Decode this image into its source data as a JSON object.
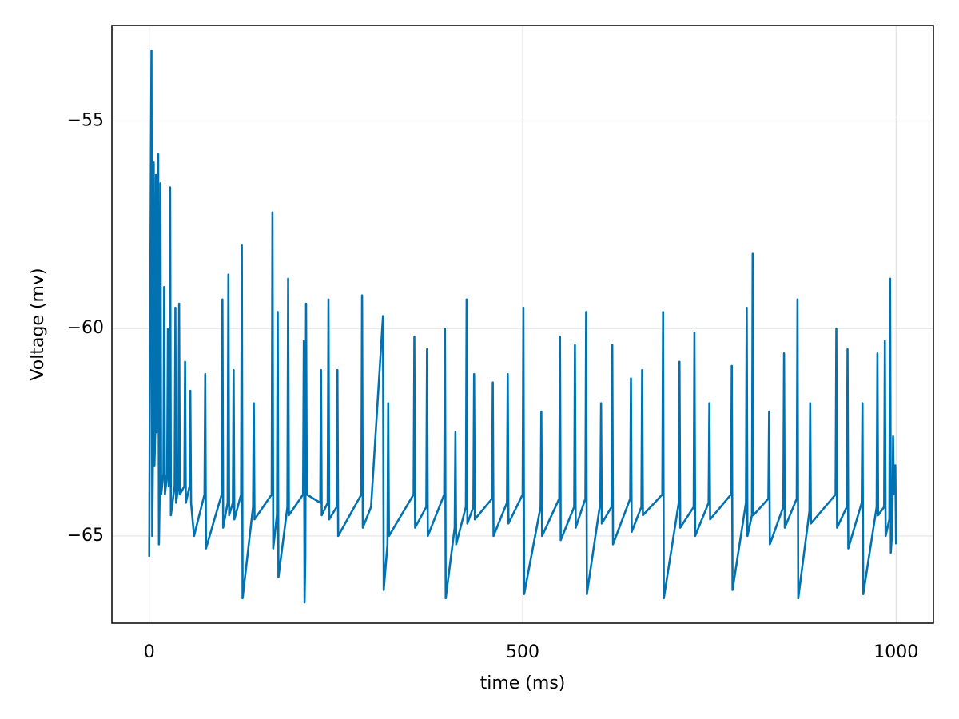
{
  "chart_data": {
    "type": "line",
    "x_label": "time (ms)",
    "y_label": "Voltage (mv)",
    "color": "#0072b2",
    "grid": true,
    "xlim": [
      -50,
      1050
    ],
    "xticks": [
      0,
      500,
      1000
    ],
    "ylim": [
      -67.1,
      -52.7
    ],
    "yticks": [
      {
        "value": -65,
        "label": "−65"
      },
      {
        "value": -60,
        "label": "−60"
      },
      {
        "value": -55,
        "label": "−55"
      }
    ],
    "x": [
      0,
      1,
      3,
      4,
      5,
      6,
      7,
      8,
      9,
      10,
      11,
      12,
      13,
      14,
      15,
      16,
      19,
      20,
      21,
      24,
      25,
      26,
      27,
      28,
      29,
      34,
      35,
      36,
      39,
      40,
      41,
      47,
      48,
      49,
      54,
      55,
      56,
      60,
      74,
      75,
      76,
      97,
      98,
      99,
      105,
      106,
      107,
      112,
      113,
      114,
      123,
      124,
      125,
      139,
      140,
      141,
      164,
      165,
      166,
      171,
      172,
      173,
      185,
      186,
      187,
      206,
      207,
      208,
      209,
      210,
      211,
      229,
      230,
      231,
      239,
      240,
      241,
      251,
      252,
      253,
      284,
      285,
      286,
      297,
      313,
      314,
      319,
      320,
      321,
      354,
      355,
      356,
      371,
      372,
      373,
      395,
      396,
      397,
      409,
      410,
      411,
      424,
      425,
      426,
      434,
      435,
      436,
      459,
      460,
      461,
      479,
      480,
      481,
      500,
      501,
      502,
      524,
      525,
      526,
      549,
      550,
      551,
      569,
      570,
      571,
      584,
      585,
      586,
      604,
      605,
      606,
      619,
      620,
      621,
      644,
      645,
      646,
      659,
      660,
      661,
      687,
      688,
      689,
      709,
      710,
      711,
      729,
      730,
      731,
      749,
      750,
      751,
      779,
      780,
      781,
      799,
      800,
      801,
      807,
      808,
      809,
      829,
      830,
      831,
      849,
      850,
      851,
      867,
      868,
      869,
      884,
      885,
      886,
      919,
      920,
      921,
      934,
      935,
      936,
      954,
      955,
      956,
      974,
      975,
      976,
      984,
      985,
      986,
      991,
      992,
      993,
      995,
      996,
      997,
      999,
      1000
    ],
    "values": [
      -65.5,
      -60.5,
      -53.3,
      -65,
      -63,
      -56,
      -63.3,
      -62.5,
      -56.3,
      -62.5,
      -62,
      -55.8,
      -65.2,
      -64,
      -56.5,
      -64,
      -63.5,
      -59,
      -64,
      -63.5,
      -60,
      -63.8,
      -63.5,
      -56.6,
      -64.5,
      -63.8,
      -59.5,
      -64.2,
      -63.8,
      -59.4,
      -64,
      -63.8,
      -60.8,
      -64.2,
      -63.8,
      -61.5,
      -64.2,
      -65,
      -64,
      -61.1,
      -65.3,
      -64,
      -59.3,
      -64.8,
      -64.2,
      -58.7,
      -64.5,
      -64.2,
      -61,
      -64.6,
      -64,
      -58,
      -66.5,
      -64.3,
      -61.8,
      -64.6,
      -64,
      -57.2,
      -65.3,
      -64.5,
      -59.6,
      -66,
      -64.3,
      -58.8,
      -64.5,
      -64,
      -60.3,
      -66.6,
      -65.5,
      -59.4,
      -64,
      -64.2,
      -61,
      -64.5,
      -64.2,
      -59.3,
      -64.6,
      -64.3,
      -61,
      -65,
      -64,
      -59.2,
      -64.8,
      -64.3,
      -59.7,
      -66.3,
      -65.2,
      -61.8,
      -65,
      -64,
      -60.2,
      -64.8,
      -64.3,
      -60.5,
      -65,
      -64,
      -60,
      -66.5,
      -64.8,
      -62.5,
      -65.2,
      -64.3,
      -59.3,
      -64.7,
      -64.3,
      -61.1,
      -64.6,
      -64.1,
      -61.3,
      -65,
      -64.2,
      -61.1,
      -64.7,
      -64,
      -59.5,
      -66.4,
      -64.3,
      -62,
      -65,
      -64.1,
      -60.2,
      -65.1,
      -64.3,
      -60.4,
      -64.8,
      -64.1,
      -59.6,
      -66.4,
      -64.2,
      -61.8,
      -64.7,
      -64.3,
      -60.4,
      -65.2,
      -64.1,
      -61.2,
      -64.9,
      -64.3,
      -61,
      -64.5,
      -64,
      -59.6,
      -66.5,
      -64.2,
      -60.8,
      -64.8,
      -64.3,
      -60.1,
      -65,
      -64.2,
      -61.8,
      -64.6,
      -64,
      -60.9,
      -66.3,
      -64.2,
      -59.5,
      -65,
      -64.5,
      -58.2,
      -64.5,
      -64.1,
      -62,
      -65.2,
      -64.3,
      -60.6,
      -64.8,
      -64.1,
      -59.3,
      -66.5,
      -64.4,
      -61.8,
      -64.7,
      -64,
      -60,
      -64.8,
      -64.3,
      -60.5,
      -65.3,
      -64.2,
      -61.8,
      -66.4,
      -64.3,
      -60.6,
      -64.5,
      -64.3,
      -60.3,
      -65,
      -64.6,
      -58.8,
      -65.4,
      -64.8,
      -62.6,
      -64,
      -63.3,
      -65.2
    ]
  }
}
